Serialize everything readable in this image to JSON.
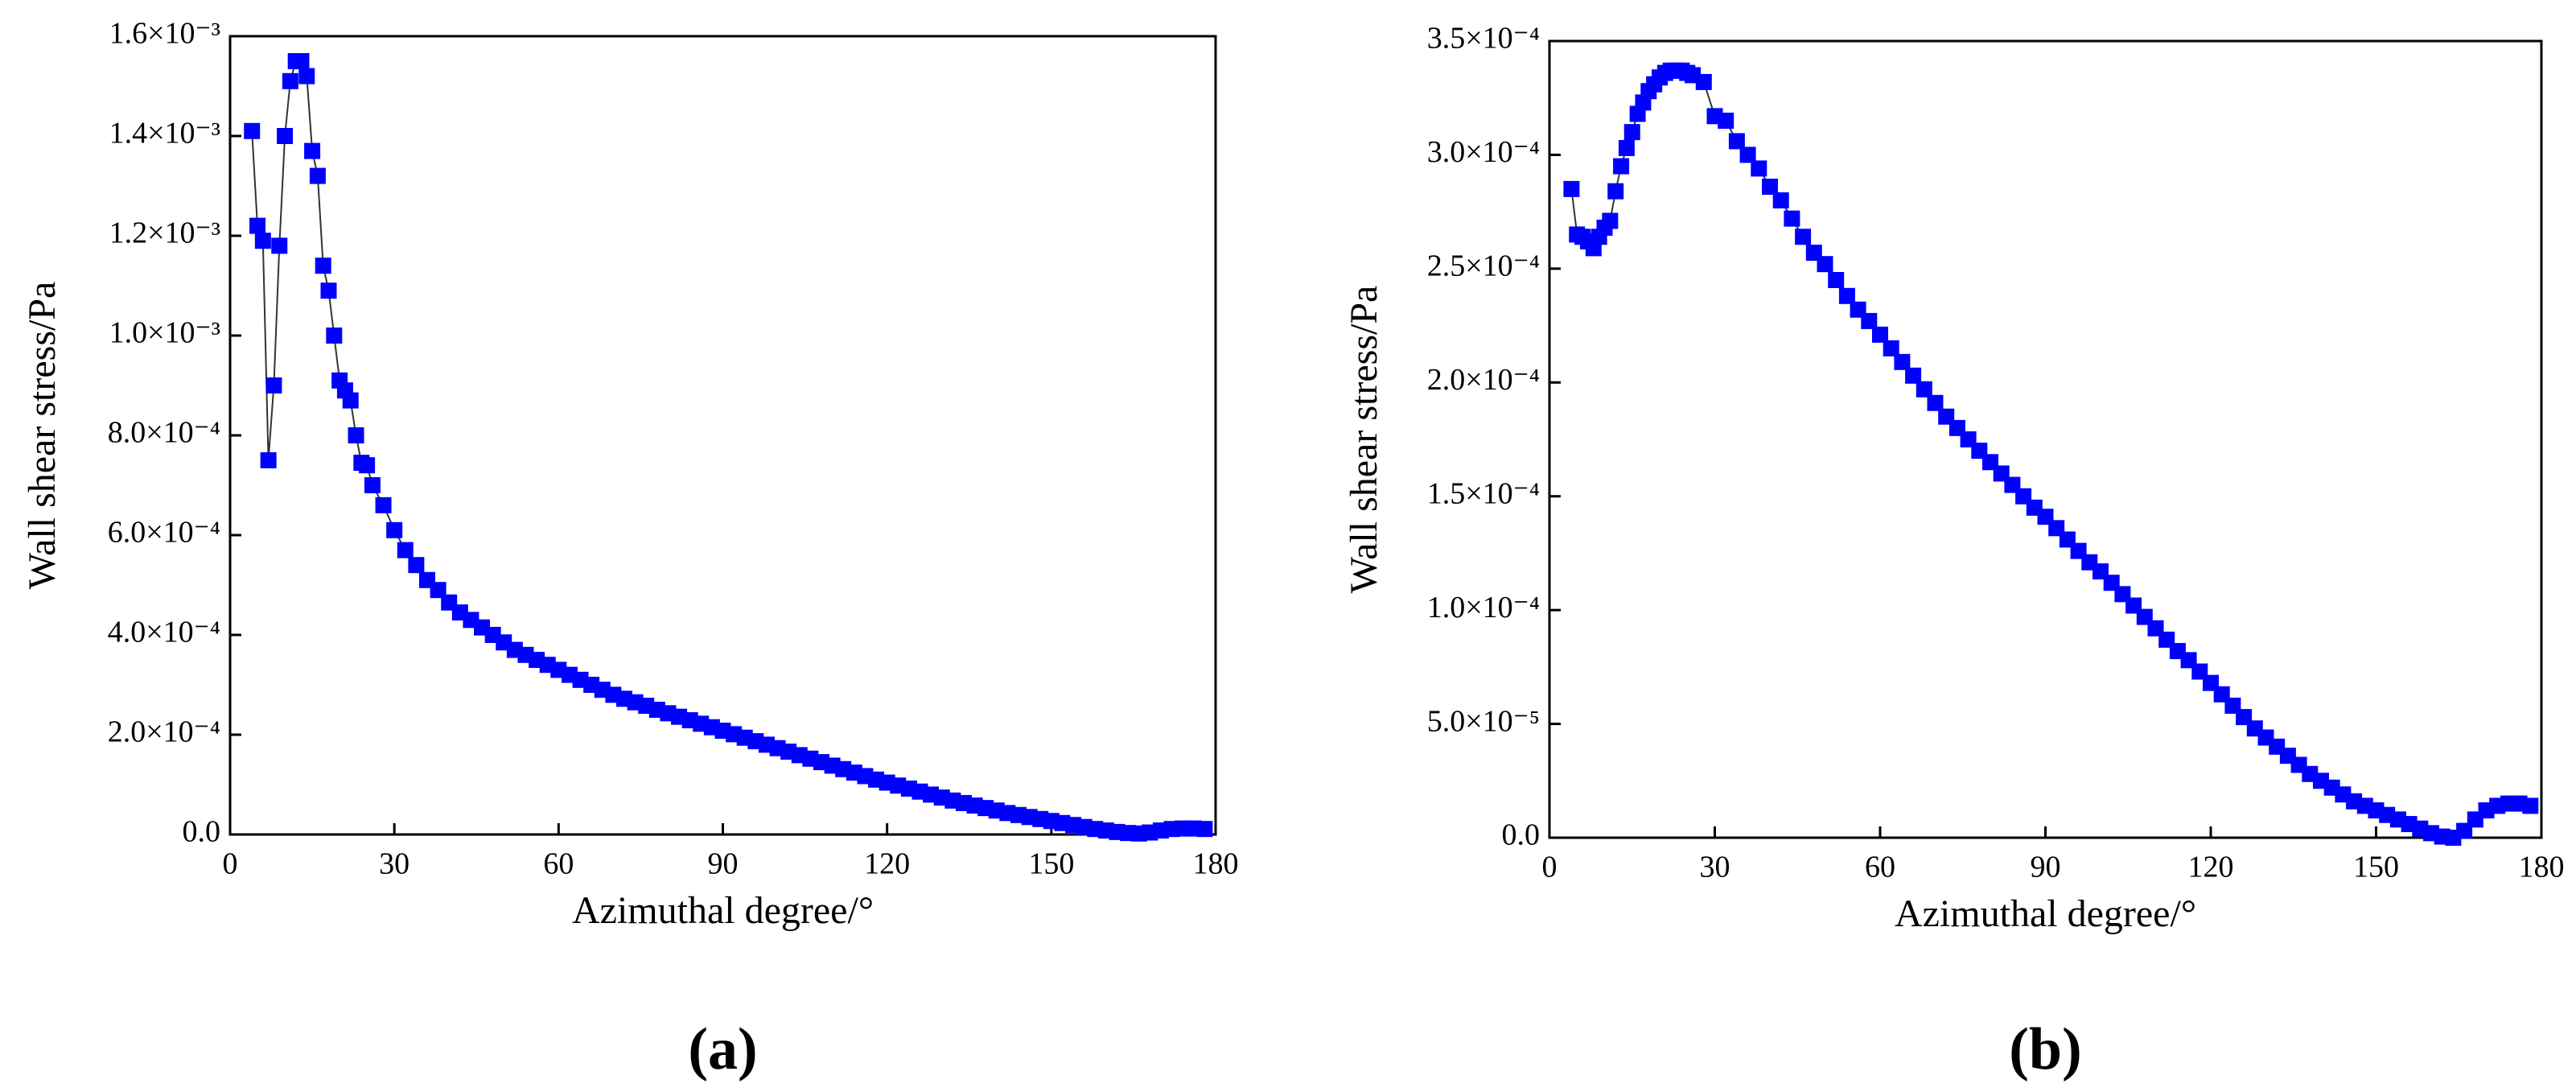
{
  "chart_data": [
    {
      "type": "line",
      "markers": true,
      "panel_label": "(a)",
      "x_label": "Azimuthal degree/°",
      "y_label": "Wall shear stress/Pa",
      "color": "#0000ff",
      "line_color": "#333333",
      "xlim": [
        0,
        180
      ],
      "xticks": [
        0,
        30,
        60,
        90,
        120,
        150,
        180
      ],
      "ylim": [
        0,
        0.0016
      ],
      "yticks": [
        {
          "value": 0,
          "label": "0.0"
        },
        {
          "value": 0.0002,
          "label": "2.0×10⁻⁴"
        },
        {
          "value": 0.0004,
          "label": "4.0×10⁻⁴"
        },
        {
          "value": 0.0006,
          "label": "6.0×10⁻⁴"
        },
        {
          "value": 0.0008,
          "label": "8.0×10⁻⁴"
        },
        {
          "value": 0.001,
          "label": "1.0×10⁻³"
        },
        {
          "value": 0.0012,
          "label": "1.2×10⁻³"
        },
        {
          "value": 0.0014,
          "label": "1.4×10⁻³"
        },
        {
          "value": 0.0016,
          "label": "1.6×10⁻³"
        }
      ],
      "x": [
        4,
        5,
        6,
        7,
        8,
        9,
        10,
        11,
        12,
        13,
        14,
        15,
        16,
        17,
        18,
        19,
        20,
        21,
        22,
        23,
        24,
        25,
        26,
        28,
        30,
        32,
        34,
        36,
        38,
        40,
        42,
        44,
        46,
        48,
        50,
        52,
        54,
        56,
        58,
        60,
        62,
        64,
        66,
        68,
        70,
        72,
        74,
        76,
        78,
        80,
        82,
        84,
        86,
        88,
        90,
        92,
        94,
        96,
        98,
        100,
        102,
        104,
        106,
        108,
        110,
        112,
        114,
        116,
        118,
        120,
        122,
        124,
        126,
        128,
        130,
        132,
        134,
        136,
        138,
        140,
        142,
        144,
        146,
        148,
        150,
        152,
        154,
        156,
        158,
        160,
        162,
        164,
        166,
        168,
        170,
        172,
        174,
        176,
        178
      ],
      "values": [
        0.00141,
        0.00122,
        0.00119,
        0.00075,
        0.0009,
        0.00118,
        0.0014,
        0.00151,
        0.00155,
        0.00155,
        0.00152,
        0.00137,
        0.00132,
        0.00114,
        0.00109,
        0.001,
        0.00091,
        0.00089,
        0.00087,
        0.0008,
        0.000745,
        0.00074,
        0.0007,
        0.00066,
        0.00061,
        0.00057,
        0.00054,
        0.00051,
        0.00049,
        0.000465,
        0.000445,
        0.00043,
        0.000415,
        0.0004,
        0.000385,
        0.00037,
        0.00036,
        0.00035,
        0.00034,
        0.00033,
        0.00032,
        0.00031,
        0.0003,
        0.00029,
        0.00028,
        0.000272,
        0.000265,
        0.000258,
        0.00025,
        0.000243,
        0.000236,
        0.000229,
        0.000222,
        0.000215,
        0.000208,
        0.000201,
        0.000194,
        0.000187,
        0.00018,
        0.000173,
        0.000166,
        0.000159,
        0.000152,
        0.000145,
        0.000138,
        0.000131,
        0.000124,
        0.000117,
        0.00011,
        0.000104,
        9.8e-05,
        9.2e-05,
        8.6e-05,
        8e-05,
        7.4e-05,
        6.8e-05,
        6.3e-05,
        5.8e-05,
        5.3e-05,
        4.8e-05,
        4.3e-05,
        3.9e-05,
        3.5e-05,
        3.1e-05,
        2.7e-05,
        2.3e-05,
        1.9e-05,
        1.5e-05,
        1.1e-05,
        8e-06,
        5e-06,
        3e-06,
        2e-06,
        4e-06,
        8e-06,
        1.1e-05,
        1.2e-05,
        1.2e-05,
        1.1e-05
      ]
    },
    {
      "type": "line",
      "markers": true,
      "panel_label": "(b)",
      "x_label": "Azimuthal degree/°",
      "y_label": "Wall shear stress/Pa",
      "color": "#0000ff",
      "line_color": "#333333",
      "xlim": [
        0,
        180
      ],
      "xticks": [
        0,
        30,
        60,
        90,
        120,
        150,
        180
      ],
      "ylim": [
        0,
        0.00035
      ],
      "yticks": [
        {
          "value": 0,
          "label": "0.0"
        },
        {
          "value": 5e-05,
          "label": "5.0×10⁻⁵"
        },
        {
          "value": 0.0001,
          "label": "1.0×10⁻⁴"
        },
        {
          "value": 0.00015,
          "label": "1.5×10⁻⁴"
        },
        {
          "value": 0.0002,
          "label": "2.0×10⁻⁴"
        },
        {
          "value": 0.00025,
          "label": "2.5×10⁻⁴"
        },
        {
          "value": 0.0003,
          "label": "3.0×10⁻⁴"
        },
        {
          "value": 0.00035,
          "label": "3.5×10⁻⁴"
        }
      ],
      "x": [
        4,
        5,
        6,
        7,
        8,
        9,
        10,
        11,
        12,
        13,
        14,
        15,
        16,
        17,
        18,
        19,
        20,
        21,
        22,
        23,
        24,
        25,
        26,
        28,
        30,
        32,
        34,
        36,
        38,
        40,
        42,
        44,
        46,
        48,
        50,
        52,
        54,
        56,
        58,
        60,
        62,
        64,
        66,
        68,
        70,
        72,
        74,
        76,
        78,
        80,
        82,
        84,
        86,
        88,
        90,
        92,
        94,
        96,
        98,
        100,
        102,
        104,
        106,
        108,
        110,
        112,
        114,
        116,
        118,
        120,
        122,
        124,
        126,
        128,
        130,
        132,
        134,
        136,
        138,
        140,
        142,
        144,
        146,
        148,
        150,
        152,
        154,
        156,
        158,
        160,
        162,
        164,
        166,
        168,
        170,
        172,
        174,
        176,
        178
      ],
      "values": [
        0.000285,
        0.000265,
        0.000264,
        0.000262,
        0.000259,
        0.000264,
        0.000268,
        0.000271,
        0.000284,
        0.000295,
        0.000303,
        0.00031,
        0.000318,
        0.000323,
        0.000328,
        0.000331,
        0.000334,
        0.000336,
        0.000337,
        0.000337,
        0.000337,
        0.000336,
        0.000335,
        0.000332,
        0.000317,
        0.000315,
        0.000306,
        0.0003,
        0.000294,
        0.000286,
        0.00028,
        0.000272,
        0.000264,
        0.000257,
        0.000252,
        0.000245,
        0.000238,
        0.000232,
        0.000227,
        0.000221,
        0.000215,
        0.000209,
        0.000203,
        0.000197,
        0.000191,
        0.000185,
        0.00018,
        0.000175,
        0.00017,
        0.000165,
        0.00016,
        0.000155,
        0.00015,
        0.000145,
        0.000141,
        0.000136,
        0.000131,
        0.000126,
        0.000121,
        0.000117,
        0.000112,
        0.000107,
        0.000102,
        9.7e-05,
        9.2e-05,
        8.7e-05,
        8.2e-05,
        7.8e-05,
        7.3e-05,
        6.8e-05,
        6.3e-05,
        5.8e-05,
        5.3e-05,
        4.8e-05,
        4.4e-05,
        4e-05,
        3.6e-05,
        3.2e-05,
        2.8e-05,
        2.5e-05,
        2.2e-05,
        1.9e-05,
        1.6e-05,
        1.4e-05,
        1.2e-05,
        1e-05,
        8e-06,
        6e-06,
        4e-06,
        2e-06,
        5e-07,
        0,
        3e-06,
        8e-06,
        1.2e-05,
        1.4e-05,
        1.5e-05,
        1.5e-05,
        1.4e-05
      ]
    }
  ]
}
